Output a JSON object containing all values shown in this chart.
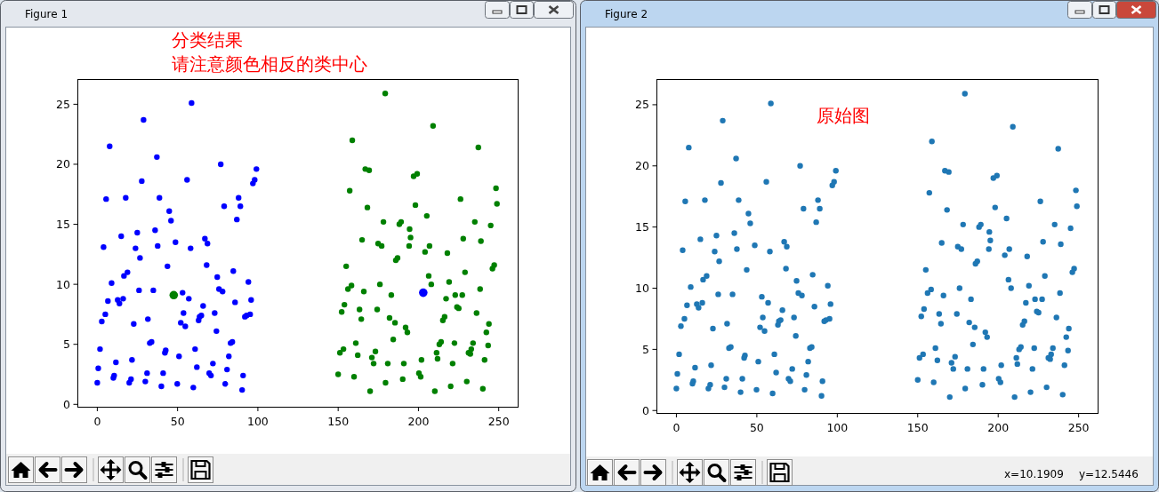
{
  "chart_data": [
    {
      "type": "scatter",
      "title": "分类结果",
      "subtitle": "请注意颜色相反的类中心",
      "annotations": [
        "Figure 1"
      ],
      "xlim": [
        -12.4,
        261.8
      ],
      "ylim": [
        -0.2,
        27.1
      ],
      "xticks": [
        0,
        50,
        100,
        150,
        200,
        250
      ],
      "yticks": [
        0,
        5,
        10,
        15,
        20,
        25
      ],
      "marker": "circle",
      "series": [
        {
          "color": "#0000ff",
          "x": [
            58.7,
            28.8,
            7.7,
            37.1,
            76.9,
            99.1,
            27.7,
            55.9,
            98.0,
            96.9,
            5.5,
            17.7,
            38.7,
            88.0,
            79.0,
            89.1,
            44.8,
            45.9,
            86.9,
            36.0,
            14.9,
            24.9,
            3.9,
            23.8,
            37.6,
            48.7,
            58.1,
            67.0,
            68.6,
            26.6,
            43.7,
            68.1,
            84.7,
            18.8,
            16.6,
            74.7,
            8.9,
            94.1,
            26.0,
            34.9,
            53.1,
            75.8,
            78.0,
            6.6,
            12.7,
            13.8,
            16.1,
            57.0,
            85.8,
            95.8,
            65.9,
            5.0,
            53.7,
            64.8,
            63.7,
            63.1,
            73.1,
            95.2,
            93.0,
            91.9,
            2.8,
            31.5,
            22.7,
            52.0,
            54.8,
            74.2,
            32.7,
            33.8,
            83.0,
            84.1,
            1.7,
            42.6,
            42.1,
            60.9,
            50.9,
            81.9,
            11.6,
            21.6,
            72.0,
            0.6,
            62.0,
            80.8,
            31.0,
            41.0,
            69.7,
            70.8,
            10.5,
            10.0,
            21.0,
            19.9,
            29.9,
            90.8,
            0.0,
            49.8,
            39.9,
            59.8,
            79.7,
            90.2
          ],
          "values": [
            25.1,
            23.7,
            21.5,
            20.6,
            20.0,
            19.6,
            18.6,
            18.7,
            18.7,
            18.4,
            17.1,
            17.2,
            17.2,
            17.2,
            16.5,
            16.5,
            16.1,
            15.3,
            15.4,
            14.5,
            14.0,
            14.3,
            13.1,
            13.0,
            13.2,
            13.5,
            13.0,
            13.8,
            13.4,
            12.2,
            11.5,
            11.6,
            11.1,
            11.0,
            10.7,
            10.6,
            10.1,
            10.2,
            9.5,
            9.5,
            9.3,
            9.6,
            9.4,
            8.6,
            8.7,
            8.4,
            8.8,
            8.8,
            8.5,
            8.7,
            8.2,
            7.5,
            7.6,
            7.4,
            7.3,
            7.0,
            7.6,
            7.5,
            7.4,
            7.3,
            6.9,
            7.1,
            6.7,
            6.8,
            6.5,
            6.1,
            5.1,
            5.2,
            5.1,
            5.2,
            4.6,
            4.5,
            4.3,
            4.6,
            4.0,
            4.0,
            3.5,
            3.7,
            3.4,
            3.0,
            3.1,
            2.9,
            2.6,
            2.6,
            2.6,
            2.4,
            2.4,
            2.2,
            2.1,
            1.8,
            1.9,
            2.4,
            1.8,
            1.7,
            1.5,
            1.4,
            1.7,
            1.2
          ]
        },
        {
          "color": "#008000",
          "x": [
            179.3,
            209.1,
            158.8,
            237.3,
            166.9,
            169.3,
            199.2,
            197.0,
            248.3,
            157.2,
            248.9,
            226.2,
            168.2,
            198.1,
            205.2,
            178.2,
            188.1,
            189.2,
            235.1,
            245.0,
            194.5,
            164.9,
            195.1,
            174.9,
            177.1,
            227.9,
            238.9,
            194.2,
            206.9,
            204.1,
            218.0,
            187.0,
            185.9,
            155.0,
            247.2,
            246.1,
            229.0,
            206.4,
            158.3,
            156.1,
            176.0,
            208.0,
            219.1,
            166.0,
            183.1,
            238.4,
            217.2,
            222.9,
            227.3,
            153.9,
            152.2,
            163.3,
            174.3,
            224.0,
            225.1,
            236.2,
            164.4,
            182.0,
            185.4,
            216.3,
            215.2,
            243.9,
            192.0,
            193.1,
            242.3,
            184.3,
            161.0,
            214.1,
            213.0,
            222.4,
            234.0,
            243.4,
            153.3,
            151.1,
            173.2,
            162.2,
            171.0,
            172.1,
            180.9,
            190.9,
            201.9,
            211.3,
            211.9,
            221.3,
            231.2,
            232.3,
            232.9,
            241.2,
            150.0,
            159.9,
            200.3,
            201.4,
            190.2,
            179.5,
            169.9,
            210.2,
            220.1,
            230.1,
            240.1
          ],
          "values": [
            25.9,
            23.2,
            22.0,
            21.4,
            19.6,
            19.5,
            19.2,
            19.0,
            18.0,
            17.8,
            16.7,
            17.1,
            16.4,
            16.6,
            15.7,
            15.2,
            15.0,
            15.2,
            15.2,
            14.9,
            14.6,
            13.7,
            13.9,
            13.4,
            13.2,
            13.8,
            13.6,
            13.2,
            13.2,
            12.7,
            12.6,
            12.2,
            12.0,
            11.5,
            11.6,
            11.3,
            11.0,
            10.7,
            9.9,
            9.6,
            10.0,
            10.0,
            10.2,
            9.4,
            9.1,
            9.6,
            8.8,
            9.1,
            9.1,
            8.3,
            7.7,
            7.9,
            7.9,
            8.1,
            8.0,
            7.6,
            7.1,
            7.2,
            6.8,
            7.3,
            7.0,
            6.7,
            6.4,
            6.0,
            6.0,
            5.4,
            5.1,
            5.2,
            5.0,
            5.1,
            5.1,
            4.9,
            4.6,
            4.3,
            4.4,
            4.1,
            3.9,
            3.4,
            3.4,
            3.4,
            3.7,
            4.3,
            3.8,
            3.4,
            4.3,
            4.2,
            4.6,
            3.7,
            2.5,
            2.3,
            2.6,
            2.3,
            2.1,
            1.8,
            1.1,
            1.1,
            1.5,
            1.9,
            1.3
          ]
        },
        {
          "type": "bubble",
          "color": "#008000",
          "x": [
            47.6
          ],
          "values": [
            9.1
          ],
          "sizes": [
            1
          ]
        },
        {
          "type": "bubble",
          "color": "#0000ff",
          "x": [
            203.0
          ],
          "values": [
            9.3
          ],
          "sizes": [
            1
          ]
        }
      ]
    },
    {
      "type": "scatter",
      "title": "原始图",
      "annotations": [
        "Figure 2",
        "x=10.1909",
        "y=12.5446"
      ],
      "xlim": [
        -12.4,
        261.8
      ],
      "ylim": [
        -0.2,
        27.1
      ],
      "xticks": [
        0,
        50,
        100,
        150,
        200,
        250
      ],
      "yticks": [
        0,
        5,
        10,
        15,
        20,
        25
      ],
      "marker": "circle",
      "series": [
        {
          "color": "#1f77b4",
          "x": [
            58.7,
            28.8,
            7.7,
            37.1,
            76.9,
            99.1,
            27.7,
            55.9,
            98.0,
            96.9,
            5.5,
            17.7,
            38.7,
            88.0,
            79.0,
            89.1,
            44.8,
            45.9,
            86.9,
            36.0,
            14.9,
            24.9,
            3.9,
            23.8,
            37.6,
            48.7,
            58.1,
            67.0,
            68.6,
            26.6,
            43.7,
            68.1,
            84.7,
            18.8,
            16.6,
            74.7,
            8.9,
            94.1,
            26.0,
            34.9,
            53.1,
            75.8,
            78.0,
            6.6,
            12.7,
            13.8,
            16.1,
            57.0,
            85.8,
            95.8,
            65.9,
            5.0,
            53.7,
            64.8,
            63.7,
            63.1,
            73.1,
            95.2,
            93.0,
            91.9,
            2.8,
            31.5,
            22.7,
            52.0,
            54.8,
            74.2,
            32.7,
            33.8,
            83.0,
            84.1,
            1.7,
            42.6,
            42.1,
            60.9,
            50.9,
            81.9,
            11.6,
            21.6,
            72.0,
            0.6,
            62.0,
            80.8,
            31.0,
            41.0,
            69.7,
            70.8,
            10.5,
            10.0,
            21.0,
            19.9,
            29.9,
            90.8,
            0.0,
            49.8,
            39.9,
            59.8,
            79.7,
            90.2,
            179.3,
            209.1,
            158.8,
            237.3,
            166.9,
            169.3,
            199.2,
            197.0,
            248.3,
            157.2,
            248.9,
            226.2,
            168.2,
            198.1,
            205.2,
            178.2,
            188.1,
            189.2,
            235.1,
            245.0,
            194.5,
            164.9,
            195.1,
            174.9,
            177.1,
            227.9,
            238.9,
            194.2,
            206.9,
            204.1,
            218.0,
            187.0,
            185.9,
            155.0,
            247.2,
            246.1,
            229.0,
            206.4,
            158.3,
            156.1,
            176.0,
            208.0,
            219.1,
            166.0,
            183.1,
            238.4,
            217.2,
            222.9,
            227.3,
            153.9,
            152.2,
            163.3,
            174.3,
            224.0,
            225.1,
            236.2,
            164.4,
            182.0,
            185.4,
            216.3,
            215.2,
            243.9,
            192.0,
            193.1,
            242.3,
            184.3,
            161.0,
            214.1,
            213.0,
            222.4,
            234.0,
            243.4,
            153.3,
            151.1,
            173.2,
            162.2,
            171.0,
            172.1,
            180.9,
            190.9,
            201.9,
            211.3,
            211.9,
            221.3,
            231.2,
            232.3,
            232.9,
            241.2,
            150.0,
            159.9,
            200.3,
            201.4,
            190.2,
            179.5,
            169.9,
            210.2,
            220.1,
            230.1,
            240.1
          ],
          "values": [
            25.1,
            23.7,
            21.5,
            20.6,
            20.0,
            19.6,
            18.6,
            18.7,
            18.7,
            18.4,
            17.1,
            17.2,
            17.2,
            17.2,
            16.5,
            16.5,
            16.1,
            15.3,
            15.4,
            14.5,
            14.0,
            14.3,
            13.1,
            13.0,
            13.2,
            13.5,
            13.0,
            13.8,
            13.4,
            12.2,
            11.5,
            11.6,
            11.1,
            11.0,
            10.7,
            10.6,
            10.1,
            10.2,
            9.5,
            9.5,
            9.3,
            9.6,
            9.4,
            8.6,
            8.7,
            8.4,
            8.8,
            8.8,
            8.5,
            8.7,
            8.2,
            7.5,
            7.6,
            7.4,
            7.3,
            7.0,
            7.6,
            7.5,
            7.4,
            7.3,
            6.9,
            7.1,
            6.7,
            6.8,
            6.5,
            6.1,
            5.1,
            5.2,
            5.1,
            5.2,
            4.6,
            4.5,
            4.3,
            4.6,
            4.0,
            4.0,
            3.5,
            3.7,
            3.4,
            3.0,
            3.1,
            2.9,
            2.6,
            2.6,
            2.6,
            2.4,
            2.4,
            2.2,
            2.1,
            1.8,
            1.9,
            2.4,
            1.8,
            1.7,
            1.5,
            1.4,
            1.7,
            1.2,
            25.9,
            23.2,
            22.0,
            21.4,
            19.6,
            19.5,
            19.2,
            19.0,
            18.0,
            17.8,
            16.7,
            17.1,
            16.4,
            16.6,
            15.7,
            15.2,
            15.0,
            15.2,
            15.2,
            14.9,
            14.6,
            13.7,
            13.9,
            13.4,
            13.2,
            13.8,
            13.6,
            13.2,
            13.2,
            12.7,
            12.6,
            12.2,
            12.0,
            11.5,
            11.6,
            11.3,
            11.0,
            10.7,
            9.9,
            9.6,
            10.0,
            10.0,
            10.2,
            9.4,
            9.1,
            9.6,
            8.8,
            9.1,
            9.1,
            8.3,
            7.7,
            7.9,
            7.9,
            8.1,
            8.0,
            7.6,
            7.1,
            7.2,
            6.8,
            7.3,
            7.0,
            6.7,
            6.4,
            6.0,
            6.0,
            5.4,
            5.1,
            5.2,
            5.0,
            5.1,
            5.1,
            4.9,
            4.6,
            4.3,
            4.4,
            4.1,
            3.9,
            3.4,
            3.4,
            3.4,
            3.7,
            4.3,
            3.8,
            3.4,
            4.3,
            4.2,
            4.6,
            3.7,
            2.5,
            2.3,
            2.6,
            2.3,
            2.1,
            1.8,
            1.1,
            1.1,
            1.5,
            1.9,
            1.3
          ]
        }
      ]
    }
  ]
}
